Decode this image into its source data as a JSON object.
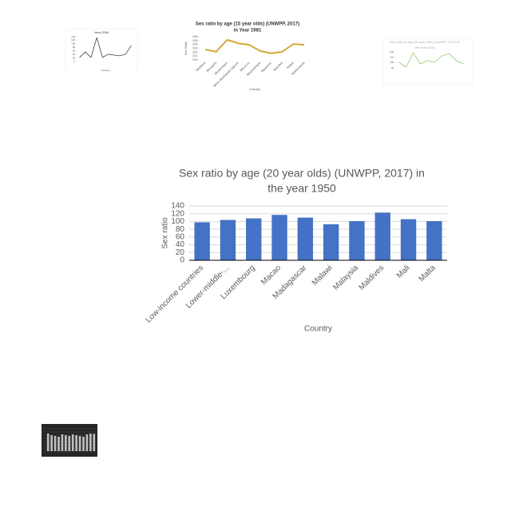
{
  "chart_data": [
    {
      "type": "line",
      "title": [
        "Year 2000"
      ],
      "categories": [
        null,
        null,
        null,
        null,
        null,
        null,
        null,
        null,
        null,
        null
      ],
      "values": [
        23,
        54,
        23,
        135,
        23,
        41,
        36,
        32,
        41,
        90
      ],
      "color": "#404040",
      "ylim": [
        0,
        140
      ],
      "yticks": [
        0,
        20,
        40,
        60,
        80,
        100,
        120,
        140
      ],
      "xlabel": "Country",
      "grid": false
    },
    {
      "type": "line",
      "title": [
        "Sex ratio by age (15 year olds) (UNWPP, 2017)",
        "in Year 1981"
      ],
      "categories": [
        "Moldova",
        "Mongolia",
        "Montenegro",
        "More developed regions",
        "Morocco",
        "Mozambique",
        "Myanmar",
        "Namibia",
        "Nepal",
        "Netherlands"
      ],
      "values": [
        102.7,
        102.1,
        105.2,
        104.3,
        103.9,
        102.3,
        101.7,
        102.1,
        104.1,
        103.9
      ],
      "color": "#d4a93a",
      "ylim": [
        100,
        106
      ],
      "yticks": [
        100,
        101,
        102,
        103,
        104,
        105,
        106
      ],
      "xlabel": "Country",
      "ylabel": "Sex Ratio",
      "grid": false
    },
    {
      "type": "line",
      "title": [
        "Sex ratio by age (20 year olds) (UNWPP, 2017) in",
        "the Year 2015"
      ],
      "categories": [
        null,
        null,
        null,
        null,
        null,
        null,
        null,
        null,
        null,
        null
      ],
      "values": [
        100.5,
        91.5,
        118.5,
        97.5,
        103.5,
        100.5,
        112.5,
        117,
        103.5,
        97.5
      ],
      "color": "#8fca72",
      "ylim": [
        90,
        120
      ],
      "yticks": [
        90,
        100,
        110,
        120
      ],
      "grid": false
    },
    {
      "type": "bar",
      "title": [
        "Sex ratio by age (20 year olds) (UNWPP, 2017) in",
        "the year 1950"
      ],
      "categories": [
        "Low-income countries",
        "Lower-middle-...",
        "Luxembourg",
        "Macao",
        "Madagascar",
        "Malawi",
        "Malaysia",
        "Maldives",
        "Mali",
        "Malta"
      ],
      "values": [
        98,
        104,
        108,
        117,
        110,
        93,
        101,
        123,
        106,
        101
      ],
      "color": "#4472c4",
      "ylim": [
        0,
        140
      ],
      "yticks": [
        0,
        20,
        40,
        60,
        80,
        100,
        120,
        140
      ],
      "xlabel": "Country",
      "ylabel": "Sex ratio",
      "grid": true
    },
    {
      "type": "bar",
      "categories": [
        null,
        null,
        null,
        null,
        null,
        null,
        null,
        null,
        null,
        null,
        null,
        null,
        null,
        null
      ],
      "values": [
        110,
        100,
        95,
        90,
        105,
        100,
        95,
        105,
        100,
        95,
        90,
        105,
        110,
        108
      ],
      "color": "#bfbfbf",
      "ylim": [
        0,
        140
      ],
      "yticks": [
        0,
        20,
        40,
        60,
        80,
        100,
        120,
        140
      ],
      "grid": true
    }
  ]
}
